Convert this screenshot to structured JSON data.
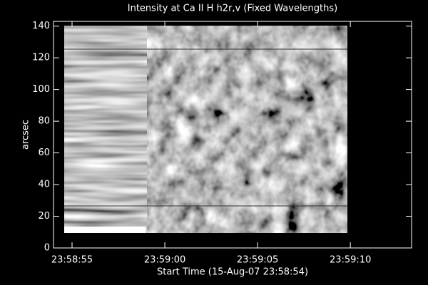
{
  "chart_data": {
    "type": "image",
    "title": "Intensity at Ca II H h2r,v (Fixed Wavelengths)",
    "x_label": "Start Time (15-Aug-07 23:58:54)",
    "y_label": "arcsec",
    "xlim": [
      0,
      19.3
    ],
    "xticks": [
      {
        "value": 1,
        "label": "23:58:55"
      },
      {
        "value": 6,
        "label": "23:59:00"
      },
      {
        "value": 11,
        "label": "23:59:05"
      },
      {
        "value": 16,
        "label": "23:59:10"
      }
    ],
    "ylim": [
      0,
      143
    ],
    "yticks": [
      0,
      20,
      40,
      60,
      80,
      100,
      120,
      140
    ]
  }
}
